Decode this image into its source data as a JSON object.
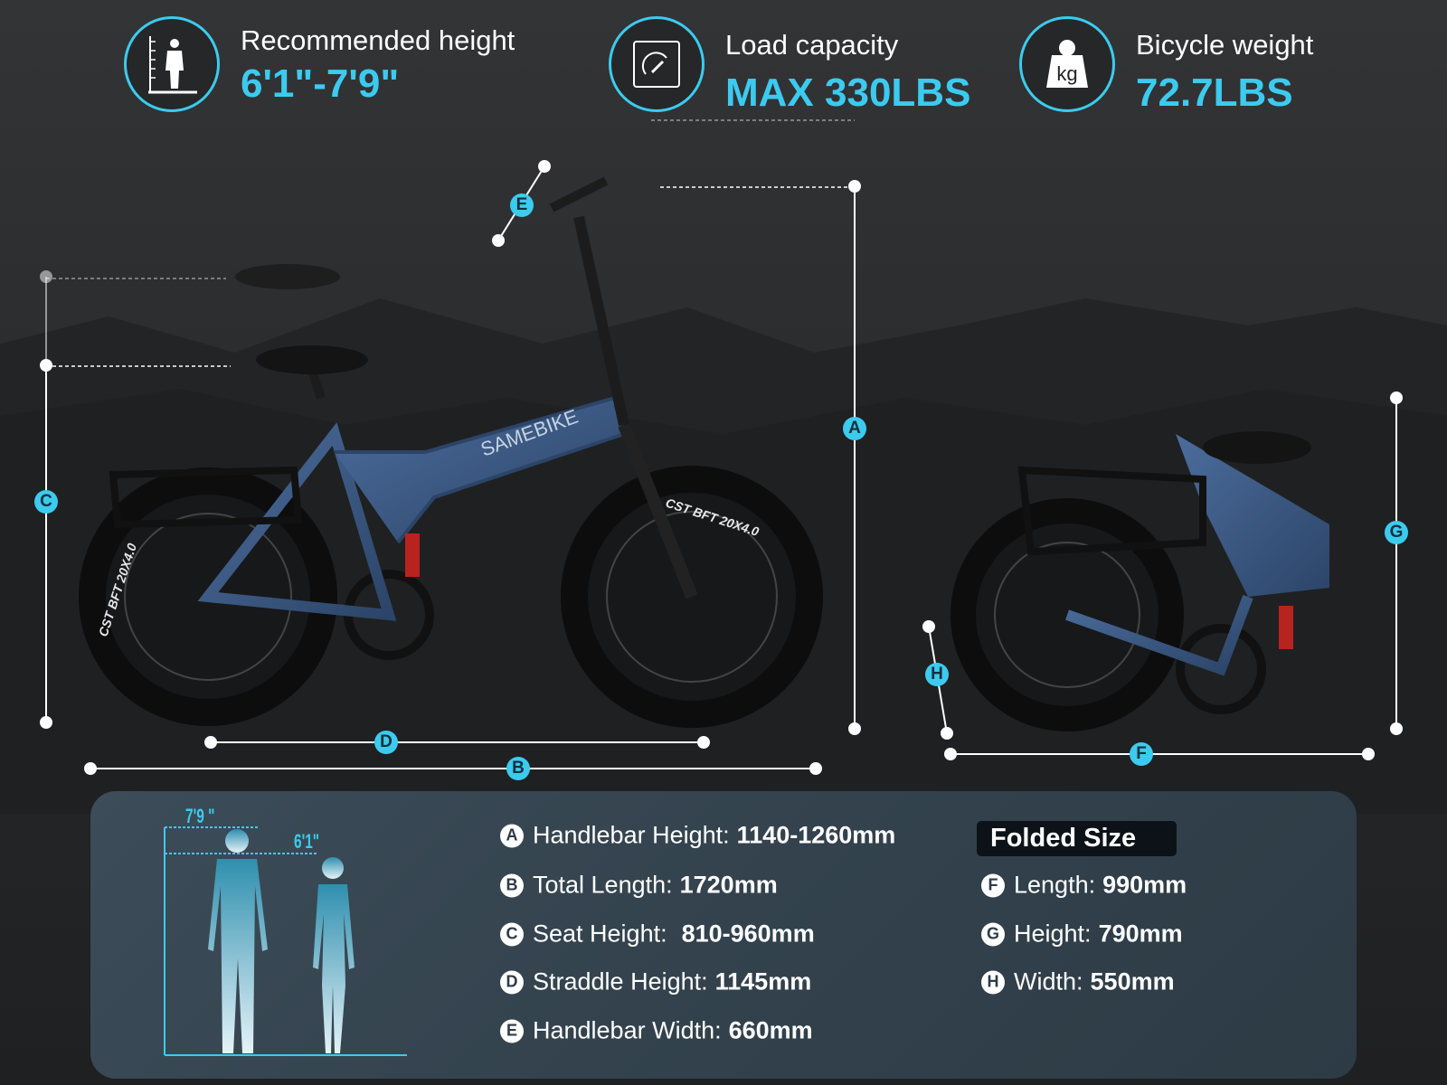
{
  "features": [
    {
      "icon": "height-ruler-person-icon",
      "label": "Recommended height",
      "value": "6'1\"-7'9\""
    },
    {
      "icon": "speedometer-gauge-icon",
      "label": "Load capacity",
      "value": "MAX 330LBS"
    },
    {
      "icon": "kg-weight-icon",
      "label": "Bicycle weight",
      "value": "72.7LBS",
      "icon_text": "kg"
    }
  ],
  "bike": {
    "brand": "SAMEBIKE",
    "tire_text": "CST BFT 20X4.0"
  },
  "dimension_markers": [
    "A",
    "B",
    "C",
    "D",
    "E",
    "F",
    "G",
    "H"
  ],
  "height_chart": {
    "tall": "7'9 \"",
    "short": "6'1\""
  },
  "specs": [
    {
      "letter": "A",
      "label": "Handlebar Height:",
      "value": "1140-1260mm"
    },
    {
      "letter": "B",
      "label": "Total Length:",
      "value": "1720mm"
    },
    {
      "letter": "C",
      "label": "Seat Height:",
      "value": "810-960mm"
    },
    {
      "letter": "D",
      "label": "Straddle Height:",
      "value": "1145mm"
    },
    {
      "letter": "E",
      "label": "Handlebar Width:",
      "value": "660mm"
    }
  ],
  "folded": {
    "title": "Folded Size",
    "specs": [
      {
        "letter": "F",
        "label": "Length:",
        "value": "990mm"
      },
      {
        "letter": "G",
        "label": "Height:",
        "value": "790mm"
      },
      {
        "letter": "H",
        "label": "Width:",
        "value": "550mm"
      }
    ]
  },
  "colors": {
    "accent": "#3ccbef",
    "frame": "#3b5a86",
    "background": "#2b2c2e"
  }
}
